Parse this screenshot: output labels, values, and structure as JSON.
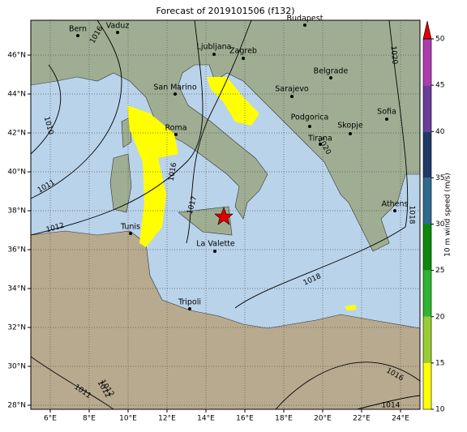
{
  "title": "Forecast of 2019101506 (f132)",
  "lon_ticks": [
    {
      "value": 6,
      "label": "6°E"
    },
    {
      "value": 8,
      "label": "8°E"
    },
    {
      "value": 10,
      "label": "10°E"
    },
    {
      "value": 12,
      "label": "12°E"
    },
    {
      "value": 14,
      "label": "14°E"
    },
    {
      "value": 16,
      "label": "16°E"
    },
    {
      "value": 18,
      "label": "18°E"
    },
    {
      "value": 20,
      "label": "20°E"
    },
    {
      "value": 22,
      "label": "22°E"
    },
    {
      "value": 24,
      "label": "24°E"
    }
  ],
  "lat_ticks": [
    {
      "value": 28,
      "label": "28°N"
    },
    {
      "value": 30,
      "label": "30°N"
    },
    {
      "value": 32,
      "label": "32°N"
    },
    {
      "value": 34,
      "label": "34°N"
    },
    {
      "value": 36,
      "label": "36°N"
    },
    {
      "value": 38,
      "label": "38°N"
    },
    {
      "value": 40,
      "label": "40°N"
    },
    {
      "value": 42,
      "label": "42°N"
    },
    {
      "value": 44,
      "label": "44°N"
    },
    {
      "value": 46,
      "label": "46°N"
    }
  ],
  "cities": [
    "Bern",
    "Vaduz",
    "Budapest",
    "Ljubljana",
    "Zagreb",
    "San Marino",
    "Sarajevo",
    "Belgrade",
    "Roma",
    "Podgorica",
    "Skopje",
    "Sofia",
    "Tirana",
    "Athens",
    "Tunis",
    "La Valette",
    "Tripoli"
  ],
  "isobar_labels": [
    "1016",
    "1012",
    "1011",
    "1010",
    "1016",
    "1017",
    "1018",
    "1020",
    "1020",
    "1018",
    "1012",
    "1011",
    "1012",
    "1016",
    "1014"
  ],
  "colorbar": {
    "label": "10 m wind speed (m/s)",
    "ticks": [
      10,
      15,
      20,
      25,
      30,
      35,
      40,
      45,
      50
    ],
    "lim": [
      10,
      50
    ],
    "colors": [
      "#ffff00",
      "#9acd32",
      "#2fb52f",
      "#0a8a0a",
      "#2e6a8e",
      "#1f3a66",
      "#6a3d9a",
      "#b03ab0"
    ],
    "extend_color": "#e00000"
  }
}
